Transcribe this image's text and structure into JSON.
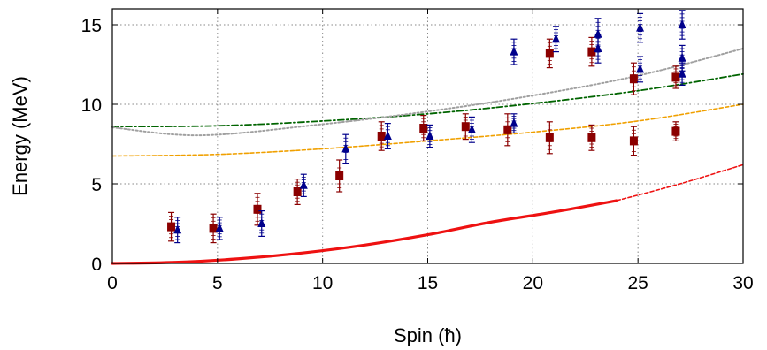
{
  "chart_data": {
    "type": "scatter",
    "xlabel": "Spin (ħ)",
    "ylabel": "Energy (MeV)",
    "xlim": [
      0,
      30
    ],
    "ylim": [
      0,
      16
    ],
    "xticks": [
      0,
      5,
      10,
      15,
      20,
      25,
      30
    ],
    "yticks": [
      0,
      5,
      10,
      15
    ],
    "grid": true,
    "colors": {
      "square_series": "#8b0000",
      "triangle_series": "#00008b",
      "solid_curve": "#ee1111",
      "orange_curve": "#f0a000",
      "green_curve": "#006400",
      "gray_curve": "#a0a0a0"
    },
    "series": [
      {
        "marker": "square",
        "points": [
          {
            "x": 2.8,
            "y": 2.3,
            "err": 0.9
          },
          {
            "x": 4.8,
            "y": 2.2,
            "err": 0.9
          },
          {
            "x": 6.9,
            "y": 3.4,
            "err": 1.0
          },
          {
            "x": 8.8,
            "y": 4.5,
            "err": 0.8
          },
          {
            "x": 10.8,
            "y": 5.5,
            "err": 1.0
          },
          {
            "x": 12.8,
            "y": 8.0,
            "err": 0.9
          },
          {
            "x": 14.8,
            "y": 8.5,
            "err": 0.8
          },
          {
            "x": 16.8,
            "y": 8.6,
            "err": 0.8
          },
          {
            "x": 18.8,
            "y": 8.4,
            "err": 1.0
          },
          {
            "x": 20.8,
            "y": 13.2,
            "err": 0.9
          },
          {
            "x": 20.8,
            "y": 7.9,
            "err": 1.0
          },
          {
            "x": 22.8,
            "y": 13.3,
            "err": 0.9
          },
          {
            "x": 22.8,
            "y": 7.9,
            "err": 0.8
          },
          {
            "x": 24.8,
            "y": 11.6,
            "err": 1.0
          },
          {
            "x": 24.8,
            "y": 7.7,
            "err": 0.9
          },
          {
            "x": 26.8,
            "y": 11.7,
            "err": 0.7
          },
          {
            "x": 26.8,
            "y": 8.3,
            "err": 0.6
          }
        ]
      },
      {
        "marker": "triangle",
        "points": [
          {
            "x": 3.1,
            "y": 2.1,
            "err": 0.8
          },
          {
            "x": 5.1,
            "y": 2.2,
            "err": 0.7
          },
          {
            "x": 7.1,
            "y": 2.5,
            "err": 0.8
          },
          {
            "x": 9.1,
            "y": 4.9,
            "err": 0.7
          },
          {
            "x": 11.1,
            "y": 7.2,
            "err": 0.9
          },
          {
            "x": 13.1,
            "y": 8.0,
            "err": 0.8
          },
          {
            "x": 15.1,
            "y": 8.0,
            "err": 0.7
          },
          {
            "x": 17.1,
            "y": 8.4,
            "err": 0.8
          },
          {
            "x": 19.1,
            "y": 13.3,
            "err": 0.8
          },
          {
            "x": 19.1,
            "y": 8.8,
            "err": 0.6
          },
          {
            "x": 21.1,
            "y": 14.1,
            "err": 0.8
          },
          {
            "x": 23.1,
            "y": 14.4,
            "err": 1.0
          },
          {
            "x": 23.1,
            "y": 13.5,
            "err": 0.9
          },
          {
            "x": 25.1,
            "y": 14.8,
            "err": 0.9
          },
          {
            "x": 25.1,
            "y": 12.2,
            "err": 0.8
          },
          {
            "x": 27.1,
            "y": 15.0,
            "err": 0.9
          },
          {
            "x": 27.1,
            "y": 12.9,
            "err": 0.8
          },
          {
            "x": 27.1,
            "y": 11.9,
            "err": 0.7
          }
        ]
      }
    ],
    "curves": [
      {
        "style": "solid",
        "color": "#ee1111",
        "x": [
          0,
          3,
          6,
          9,
          12,
          15,
          18,
          21,
          24
        ],
        "y": [
          0,
          0.07,
          0.29,
          0.65,
          1.15,
          1.8,
          2.59,
          3.23,
          3.95
        ]
      },
      {
        "style": "dashed",
        "color": "#ee1111",
        "x": [
          24,
          27,
          30
        ],
        "y": [
          3.95,
          5.0,
          6.2
        ]
      },
      {
        "style": "dashed",
        "color": "#f0a000",
        "x": [
          0,
          5,
          10,
          15,
          20,
          25,
          30
        ],
        "y": [
          6.75,
          6.85,
          7.2,
          7.7,
          8.25,
          8.95,
          10.0
        ]
      },
      {
        "style": "dashdot",
        "color": "#006400",
        "x": [
          0,
          5,
          10,
          15,
          20,
          25,
          30
        ],
        "y": [
          8.6,
          8.65,
          8.95,
          9.4,
          10.05,
          10.85,
          11.9
        ]
      },
      {
        "style": "dotted",
        "color": "#a0a0a0",
        "x": [
          0,
          4.2,
          10,
          15,
          20,
          25,
          30
        ],
        "y": [
          8.55,
          8.05,
          8.75,
          9.55,
          10.55,
          11.8,
          13.5
        ]
      }
    ]
  }
}
